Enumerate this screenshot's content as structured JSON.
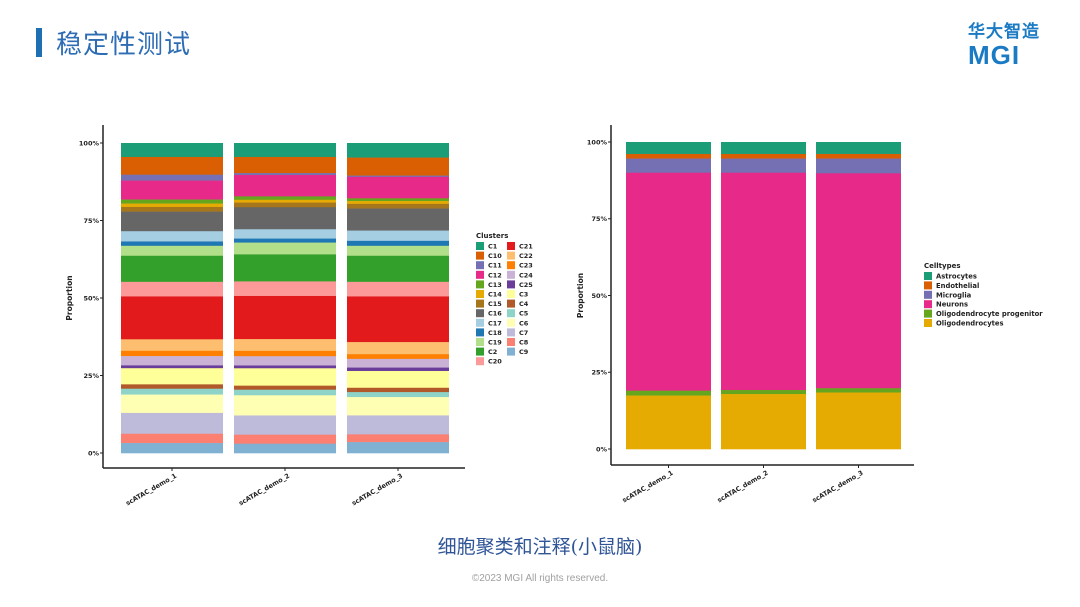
{
  "header": {
    "title": "稳定性测试",
    "logo_cn": "华大智造",
    "logo_en": "MGI"
  },
  "caption": "细胞聚类和注释(小鼠脑)",
  "footer": {
    "copyright": "©2023 MGI All rights reserved."
  },
  "chart_data": [
    {
      "type": "bar",
      "stacked": true,
      "ylabel": "Proportion",
      "xlabel": "",
      "ylim": [
        0,
        100
      ],
      "yticks": [
        "0%",
        "25%",
        "50%",
        "75%",
        "100%"
      ],
      "categories": [
        "scATAC_demo_1",
        "scATAC_demo_2",
        "scATAC_demo_3"
      ],
      "legend_title": "Clusters",
      "legend_position": "right",
      "series": [
        {
          "name": "C1",
          "color": "#1b9e77",
          "values": [
            4.5,
            4.5,
            4.7
          ]
        },
        {
          "name": "C10",
          "color": "#d95f02",
          "values": [
            5.7,
            5.2,
            5.8
          ]
        },
        {
          "name": "C11",
          "color": "#7570b3",
          "values": [
            1.9,
            0.6,
            0.4
          ]
        },
        {
          "name": "C12",
          "color": "#e7298a",
          "values": [
            6.1,
            6.9,
            6.9
          ]
        },
        {
          "name": "C13",
          "color": "#66a61e",
          "values": [
            1.3,
            1.1,
            0.9
          ]
        },
        {
          "name": "C14",
          "color": "#e6ab02",
          "values": [
            1.1,
            0.9,
            0.9
          ]
        },
        {
          "name": "C15",
          "color": "#a6761d",
          "values": [
            1.5,
            1.5,
            1.5
          ]
        },
        {
          "name": "C16",
          "color": "#666666",
          "values": [
            6.3,
            7.1,
            7.1
          ]
        },
        {
          "name": "C17",
          "color": "#a6cee3",
          "values": [
            3.3,
            3.0,
            3.3
          ]
        },
        {
          "name": "C18",
          "color": "#1f78b4",
          "values": [
            1.4,
            1.3,
            1.6
          ]
        },
        {
          "name": "C19",
          "color": "#b2df8a",
          "values": [
            3.2,
            3.8,
            3.2
          ]
        },
        {
          "name": "C2",
          "color": "#33a02c",
          "values": [
            8.4,
            8.7,
            8.4
          ]
        },
        {
          "name": "C20",
          "color": "#fb9a99",
          "values": [
            4.7,
            4.7,
            4.7
          ]
        },
        {
          "name": "C21",
          "color": "#e31a1c",
          "values": [
            13.8,
            13.9,
            14.7
          ]
        },
        {
          "name": "C22",
          "color": "#fdbf6f",
          "values": [
            3.7,
            3.8,
            3.9
          ]
        },
        {
          "name": "C23",
          "color": "#ff7f00",
          "values": [
            1.7,
            1.7,
            1.5
          ]
        },
        {
          "name": "C24",
          "color": "#cab2d6",
          "values": [
            3.0,
            3.0,
            2.8
          ]
        },
        {
          "name": "C25",
          "color": "#6a3d9a",
          "values": [
            0.9,
            0.9,
            1.1
          ]
        },
        {
          "name": "C3",
          "color": "#ffff99",
          "values": [
            5.2,
            5.6,
            5.4
          ]
        },
        {
          "name": "C4",
          "color": "#b15928",
          "values": [
            1.4,
            1.3,
            1.4
          ]
        },
        {
          "name": "C5",
          "color": "#8dd3c7",
          "values": [
            1.9,
            1.8,
            1.6
          ]
        },
        {
          "name": "C6",
          "color": "#ffffb3",
          "values": [
            5.9,
            6.5,
            5.9
          ]
        },
        {
          "name": "C7",
          "color": "#bebada",
          "values": [
            6.7,
            6.2,
            6.1
          ]
        },
        {
          "name": "C8",
          "color": "#fb8072",
          "values": [
            3.0,
            2.9,
            2.5
          ]
        },
        {
          "name": "C9",
          "color": "#80b1d3",
          "values": [
            3.2,
            3.0,
            3.5
          ]
        }
      ]
    },
    {
      "type": "bar",
      "stacked": true,
      "ylabel": "Proportion",
      "xlabel": "",
      "ylim": [
        0,
        100
      ],
      "yticks": [
        "0%",
        "25%",
        "50%",
        "75%",
        "100%"
      ],
      "categories": [
        "scATAC_demo_1",
        "scATAC_demo_2",
        "scATAC_demo_3"
      ],
      "legend_title": "Celltypes",
      "legend_position": "right",
      "series": [
        {
          "name": "Astrocytes",
          "color": "#1b9e77",
          "values": [
            3.9,
            3.9,
            3.9
          ]
        },
        {
          "name": "Endothelial",
          "color": "#d95f02",
          "values": [
            1.5,
            1.5,
            1.5
          ]
        },
        {
          "name": "Microglia",
          "color": "#7570b3",
          "values": [
            4.6,
            4.6,
            4.8
          ]
        },
        {
          "name": "Neurons",
          "color": "#e7298a",
          "values": [
            71.0,
            70.8,
            70.0
          ]
        },
        {
          "name": "Oligodendrocyte progenitor",
          "color": "#66a61e",
          "values": [
            1.6,
            1.3,
            1.4
          ]
        },
        {
          "name": "Oligodendrocytes",
          "color": "#e6ab02",
          "values": [
            17.4,
            17.9,
            18.4
          ]
        }
      ]
    }
  ]
}
